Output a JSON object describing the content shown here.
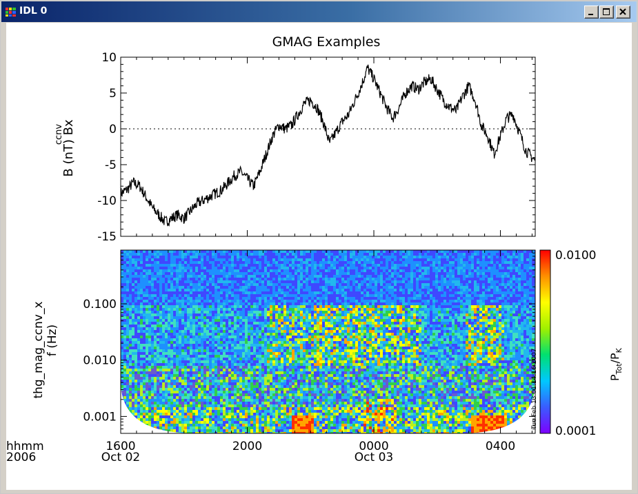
{
  "window": {
    "title": "IDL 0",
    "controls": {
      "minimize": "minimize",
      "maximize": "maximize",
      "close": "close"
    }
  },
  "plot_title": "GMAG Examples",
  "timestamp_note": "Tue Feb 13 01:14:16 2007",
  "chart_data": [
    {
      "type": "line",
      "title": "GMAG Examples",
      "ylabel_lines": [
        "B (nT) Bx",
        "ccnv"
      ],
      "ylabel": "B (nT) Bx",
      "ylabel_super": "ccnv",
      "ylim": [
        -15,
        10
      ],
      "yticks": [
        10,
        5,
        0,
        -5,
        -10,
        -15
      ],
      "ytick_labels": [
        "10",
        "5",
        "0",
        "-5",
        "-10",
        "-15"
      ],
      "reference_line": {
        "y": 0,
        "style": "dotted"
      },
      "x_unit": "hours since 2006-10-02 16:00 UT",
      "xlim": [
        0,
        13.1
      ],
      "x": [
        0.0,
        0.2,
        0.4,
        0.6,
        0.8,
        1.0,
        1.2,
        1.4,
        1.6,
        1.8,
        2.0,
        2.2,
        2.4,
        2.6,
        2.8,
        3.0,
        3.2,
        3.4,
        3.6,
        3.8,
        4.0,
        4.2,
        4.4,
        4.6,
        4.8,
        5.0,
        5.2,
        5.4,
        5.6,
        5.8,
        6.0,
        6.2,
        6.4,
        6.6,
        6.8,
        7.0,
        7.2,
        7.4,
        7.6,
        7.8,
        8.0,
        8.2,
        8.4,
        8.6,
        8.8,
        9.0,
        9.2,
        9.4,
        9.6,
        9.8,
        10.0,
        10.2,
        10.4,
        10.6,
        10.8,
        11.0,
        11.2,
        11.4,
        11.6,
        11.8,
        12.0,
        12.2,
        12.4,
        12.6,
        12.8,
        13.0,
        13.1
      ],
      "y": [
        -9,
        -8.5,
        -7.5,
        -8,
        -9.5,
        -11,
        -12,
        -13,
        -12.5,
        -12,
        -12.5,
        -11.5,
        -10.5,
        -10,
        -9.5,
        -9,
        -8.5,
        -7.5,
        -6.5,
        -6,
        -7,
        -8,
        -6,
        -3.5,
        -1,
        0.5,
        0,
        0.5,
        2,
        3.5,
        4,
        3,
        1,
        -2,
        -0.5,
        1,
        2,
        4,
        6,
        8.5,
        7,
        5,
        3,
        1.5,
        3,
        5,
        6,
        5.5,
        6.5,
        7,
        5.5,
        4,
        3,
        2.5,
        4.5,
        6,
        4,
        0.5,
        -1,
        -3.5,
        -1,
        1.5,
        2,
        -0.5,
        -3,
        -4,
        -4.5
      ]
    },
    {
      "type": "heatmap",
      "ylabel": "thg_mag_ccnv_x",
      "ylabel2": "f (Hz)",
      "yscale": "log",
      "ylim": [
        0.0005,
        0.9
      ],
      "yticks": [
        0.1,
        0.01,
        0.001
      ],
      "ytick_labels": [
        "0.100",
        "0.010",
        "0.001"
      ],
      "colorbar": {
        "label": "P_Tot/P_K",
        "label_main": "P",
        "label_sub1": "Tot",
        "label_slash": "/P",
        "label_sub2": "K",
        "max_label": "0.0100",
        "min_label": "0.0001",
        "range": [
          0.0001,
          0.01
        ],
        "colors": [
          "#7d00ff",
          "#3a5cff",
          "#00c8ff",
          "#00e070",
          "#a0f000",
          "#ffff00",
          "#ff9000",
          "#ff0000"
        ]
      },
      "palette": [
        "#8a2be2",
        "#6a5acd",
        "#3f48ff",
        "#1e90ff",
        "#22b8ee",
        "#40e0c0",
        "#30d04a",
        "#b8f020",
        "#ffff00",
        "#ffa500",
        "#ff3000"
      ],
      "xaxis": {
        "row1_label": "hhmm",
        "row2_label": "2006",
        "ticks": [
          {
            "time": "1600",
            "date": "Oct 02"
          },
          {
            "time": "2000",
            "date": ""
          },
          {
            "time": "0000",
            "date": "Oct 03"
          },
          {
            "time": "0400",
            "date": ""
          }
        ]
      }
    }
  ]
}
